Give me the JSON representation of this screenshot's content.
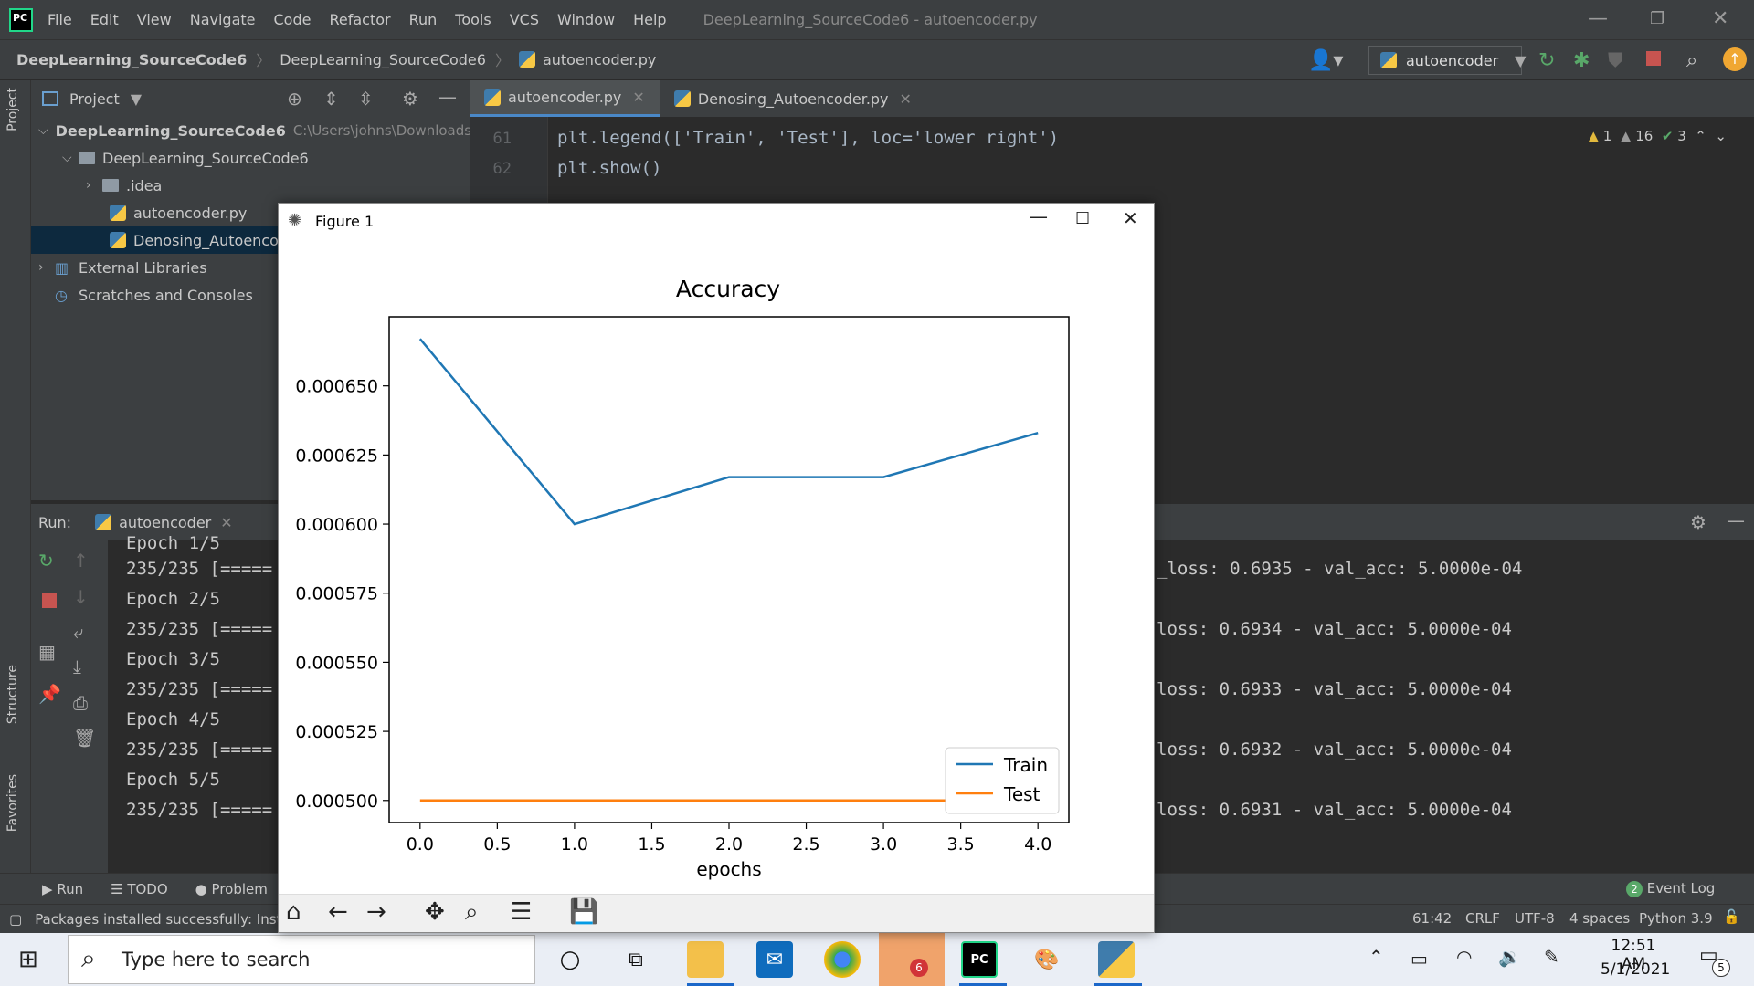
{
  "app": {
    "menu": [
      "File",
      "Edit",
      "View",
      "Navigate",
      "Code",
      "Refactor",
      "Run",
      "Tools",
      "VCS",
      "Window",
      "Help"
    ],
    "title": "DeepLearning_SourceCode6 - autoencoder.py",
    "breadcrumbs": [
      "DeepLearning_SourceCode6",
      "DeepLearning_SourceCode6",
      "autoencoder.py"
    ],
    "run_config": "autoencoder"
  },
  "project": {
    "header": "Project",
    "items": [
      {
        "label": "DeepLearning_SourceCode6",
        "path": "C:\\Users\\johns\\Downloads\\I"
      },
      {
        "label": "DeepLearning_SourceCode6"
      },
      {
        "label": ".idea"
      },
      {
        "label": "autoencoder.py"
      },
      {
        "label": "Denosing_Autoencode"
      },
      {
        "label": "External Libraries"
      },
      {
        "label": "Scratches and Consoles"
      }
    ]
  },
  "side_tabs": {
    "project": "Project",
    "structure": "Structure",
    "favorites": "Favorites"
  },
  "editor": {
    "tabs": [
      {
        "label": "autoencoder.py"
      },
      {
        "label": "Denosing_Autoencoder.py"
      }
    ],
    "lines": [
      {
        "num": "61",
        "code": "plt.legend(['Train', 'Test'], loc='lower right')"
      },
      {
        "num": "62",
        "code": "plt.show()"
      }
    ],
    "inspections": {
      "warnings": "1",
      "weak": "16",
      "ok": "3"
    }
  },
  "run": {
    "label": "Run:",
    "config": "autoencoder",
    "left_lines": [
      "Epoch 1/5",
      "235/235 [=====",
      "Epoch 2/5",
      "235/235 [=====",
      "Epoch 3/5",
      "235/235 [=====",
      "Epoch 4/5",
      "235/235 [=====",
      "Epoch 5/5",
      "235/235 [====="
    ],
    "right_lines": [
      "_loss: 0.6935 - val_acc: 5.0000e-04",
      "loss: 0.6934 - val_acc: 5.0000e-04",
      "loss: 0.6933 - val_acc: 5.0000e-04",
      "loss: 0.6932 - val_acc: 5.0000e-04",
      "loss: 0.6931 - val_acc: 5.0000e-04"
    ]
  },
  "bottom_tabs": {
    "run": "Run",
    "todo": "TODO",
    "problems": "Problem",
    "event_log": "Event Log",
    "event_count": "2"
  },
  "status": {
    "message": "Packages installed successfully: Installe",
    "position": "61:42",
    "line_sep": "CRLF",
    "encoding": "UTF-8",
    "indent": "4 spaces",
    "interpreter": "Python 3.9"
  },
  "figure": {
    "window_title": "Figure 1"
  },
  "chart_data": {
    "type": "line",
    "title": "Accuracy",
    "xlabel": "epochs",
    "ylabel": "",
    "x": [
      0,
      1,
      2,
      3,
      4
    ],
    "series": [
      {
        "name": "Train",
        "color": "#1f77b4",
        "values": [
          0.000667,
          0.0006,
          0.000617,
          0.000617,
          0.000633
        ]
      },
      {
        "name": "Test",
        "color": "#ff7f0e",
        "values": [
          0.0005,
          0.0005,
          0.0005,
          0.0005,
          0.0005
        ]
      }
    ],
    "xlim": [
      -0.2,
      4.2
    ],
    "ylim": [
      0.000492,
      0.000675
    ],
    "xticks": [
      "0.0",
      "0.5",
      "1.0",
      "1.5",
      "2.0",
      "2.5",
      "3.0",
      "3.5",
      "4.0"
    ],
    "yticks": [
      "0.000500",
      "0.000525",
      "0.000550",
      "0.000575",
      "0.000600",
      "0.000625",
      "0.000650"
    ],
    "legend": "lower-right",
    "grid": false
  },
  "taskbar": {
    "search_placeholder": "Type here to search",
    "time": "12:51 AM",
    "date": "5/1/2021",
    "notifications": "5",
    "teams_badge": "6"
  }
}
